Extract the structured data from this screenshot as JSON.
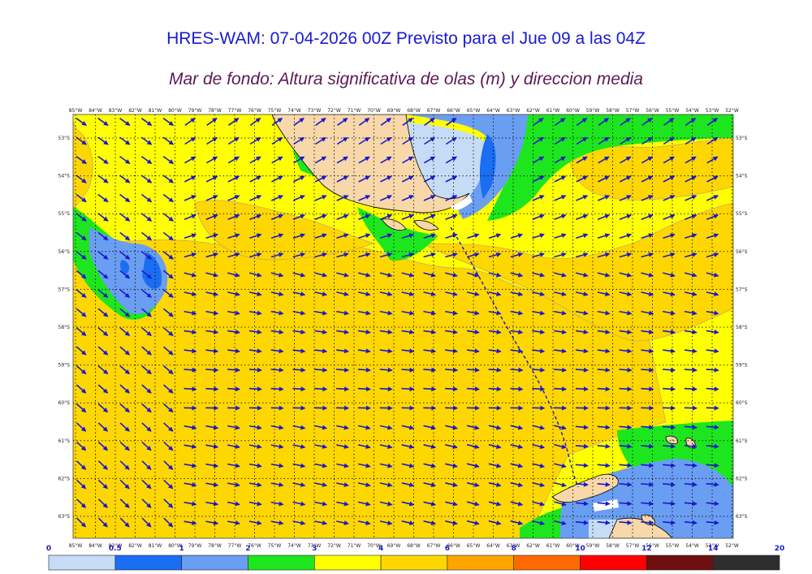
{
  "title": "HRES-WAM: 07-04-2026 00Z Previsto para el Jue 09 a las 04Z",
  "subtitle": "Mar de fondo: Altura significativa de olas (m) y direccion media",
  "lon_labels": [
    "85°W",
    "84°W",
    "83°W",
    "82°W",
    "81°W",
    "80°W",
    "79°W",
    "78°W",
    "77°W",
    "76°W",
    "75°W",
    "74°W",
    "73°W",
    "72°W",
    "71°W",
    "70°W",
    "69°W",
    "68°W",
    "67°W",
    "66°W",
    "65°W",
    "64°W",
    "63°W",
    "62°W",
    "61°W",
    "60°W",
    "59°W",
    "58°W",
    "57°W",
    "56°W",
    "55°W",
    "54°W",
    "53°W",
    "52°W"
  ],
  "lat_labels": [
    "53°S",
    "54°S",
    "55°S",
    "56°S",
    "57°S",
    "58°S",
    "59°S",
    "60°S",
    "61°S",
    "62°S",
    "63°S"
  ],
  "colorbar": {
    "labels": [
      "0",
      "0.5",
      "1",
      "2",
      "3",
      "4",
      "6",
      "8",
      "10",
      "12",
      "14",
      "20"
    ],
    "colors": [
      "#c6dcf6",
      "#1a6ef2",
      "#6a9ef2",
      "#1ee61e",
      "#ffff00",
      "#ffd700",
      "#ffa500",
      "#ff6a00",
      "#ff0000",
      "#6e1010",
      "#2e2e2e"
    ]
  },
  "colors": {
    "land": "#f8d7a8",
    "vector": "#1a1acc",
    "contour": "#c9a86a"
  },
  "icons": [
    "arrow-vector-icon"
  ]
}
